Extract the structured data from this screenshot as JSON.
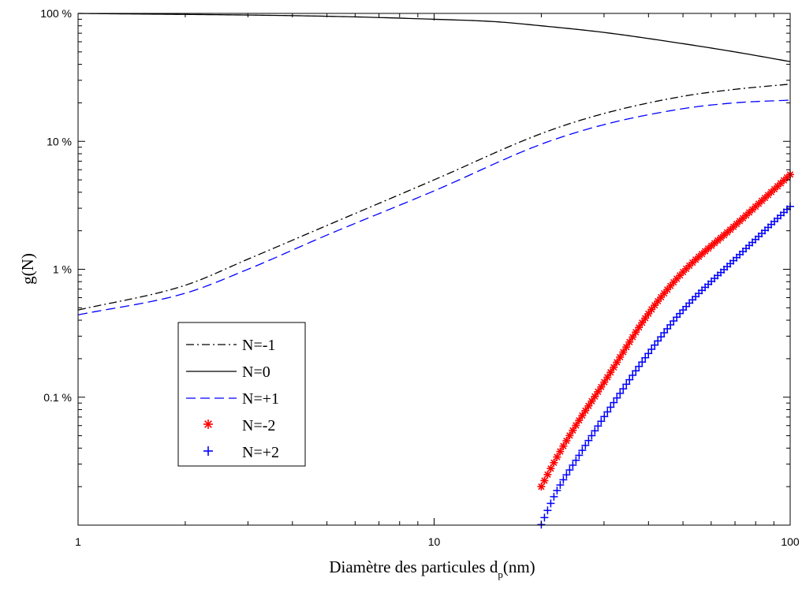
{
  "chart_data": {
    "type": "scatter",
    "xlabel": "Diamètre des particules d",
    "xlabel_sub": "p",
    "xlabel_tail": "(nm)",
    "ylabel": "g(N)",
    "xscale": "log",
    "yscale": "log",
    "xlim": [
      1,
      100
    ],
    "ylim": [
      0.01,
      100
    ],
    "x_ticks": [
      {
        "value": 1,
        "label": "1"
      },
      {
        "value": 10,
        "label": "10"
      },
      {
        "value": 100,
        "label": "100"
      }
    ],
    "y_ticks": [
      {
        "value": 100,
        "label": "100 %"
      },
      {
        "value": 10,
        "label": "10 %"
      },
      {
        "value": 1,
        "label": "1 %"
      },
      {
        "value": 0.1,
        "label": "0.1 %"
      }
    ],
    "grid": false,
    "legend_position": "bottom-left",
    "colors": {
      "black": "#000000",
      "blue": "#0000ff",
      "red": "#ff0000"
    },
    "series": [
      {
        "name": "N=-1",
        "style": "dash-dot",
        "color": "#000000",
        "x": [
          1,
          2,
          3,
          5,
          10,
          20,
          30,
          50,
          70,
          100
        ],
        "y": [
          0.48,
          0.75,
          1.2,
          2.2,
          5.0,
          11.5,
          16.5,
          22.5,
          25.5,
          28.0
        ]
      },
      {
        "name": "N=0",
        "style": "solid",
        "color": "#000000",
        "x": [
          1,
          5,
          10,
          15,
          20,
          30,
          50,
          70,
          100
        ],
        "y": [
          100,
          95,
          90,
          86,
          80,
          71,
          58,
          50,
          42
        ]
      },
      {
        "name": "N=+1",
        "style": "dashed",
        "color": "#0000ff",
        "x": [
          1,
          2,
          3,
          5,
          10,
          20,
          30,
          50,
          70,
          100
        ],
        "y": [
          0.44,
          0.65,
          1.0,
          1.85,
          4.1,
          9.5,
          13.5,
          18.0,
          20.0,
          21.0
        ]
      },
      {
        "name": "N=-2",
        "style": "marker-star",
        "color": "#ff0000",
        "x": [
          20,
          22,
          25,
          30,
          40,
          50,
          70,
          100
        ],
        "y": [
          0.02,
          0.033,
          0.06,
          0.13,
          0.45,
          0.95,
          2.2,
          5.5
        ]
      },
      {
        "name": "N=+2",
        "style": "marker-plus",
        "color": "#0000ff",
        "x": [
          20,
          22,
          25,
          30,
          40,
          50,
          70,
          100
        ],
        "y": [
          0.0101,
          0.018,
          0.032,
          0.07,
          0.22,
          0.48,
          1.2,
          3.1
        ]
      }
    ]
  }
}
